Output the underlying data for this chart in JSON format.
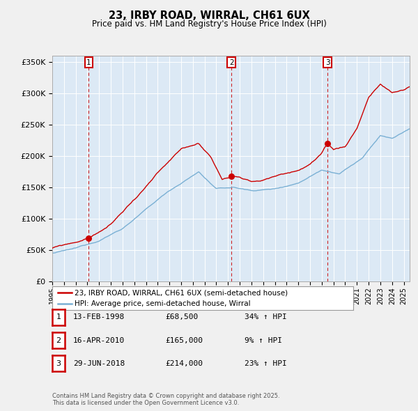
{
  "title": "23, IRBY ROAD, WIRRAL, CH61 6UX",
  "subtitle": "Price paid vs. HM Land Registry's House Price Index (HPI)",
  "ylabel_ticks": [
    "£0",
    "£50K",
    "£100K",
    "£150K",
    "£200K",
    "£250K",
    "£300K",
    "£350K"
  ],
  "ytick_values": [
    0,
    50000,
    100000,
    150000,
    200000,
    250000,
    300000,
    350000
  ],
  "ylim": [
    0,
    360000
  ],
  "xlim_start": 1995.0,
  "xlim_end": 2025.5,
  "sale_color": "#cc0000",
  "hpi_color": "#7ab0d4",
  "sale_points": [
    {
      "year": 1998.12,
      "price": 68500,
      "label": "1"
    },
    {
      "year": 2010.29,
      "price": 165000,
      "label": "2"
    },
    {
      "year": 2018.49,
      "price": 214000,
      "label": "3"
    }
  ],
  "vline_color": "#cc0000",
  "legend_sale_label": "23, IRBY ROAD, WIRRAL, CH61 6UX (semi-detached house)",
  "legend_hpi_label": "HPI: Average price, semi-detached house, Wirral",
  "table_rows": [
    {
      "num": "1",
      "date": "13-FEB-1998",
      "price": "£68,500",
      "hpi": "34% ↑ HPI"
    },
    {
      "num": "2",
      "date": "16-APR-2010",
      "price": "£165,000",
      "hpi": "9% ↑ HPI"
    },
    {
      "num": "3",
      "date": "29-JUN-2018",
      "price": "£214,000",
      "hpi": "23% ↑ HPI"
    }
  ],
  "footer": "Contains HM Land Registry data © Crown copyright and database right 2025.\nThis data is licensed under the Open Government Licence v3.0.",
  "background_color": "#f0f0f0",
  "plot_bg_color": "#dce9f5",
  "grid_color": "#ffffff"
}
